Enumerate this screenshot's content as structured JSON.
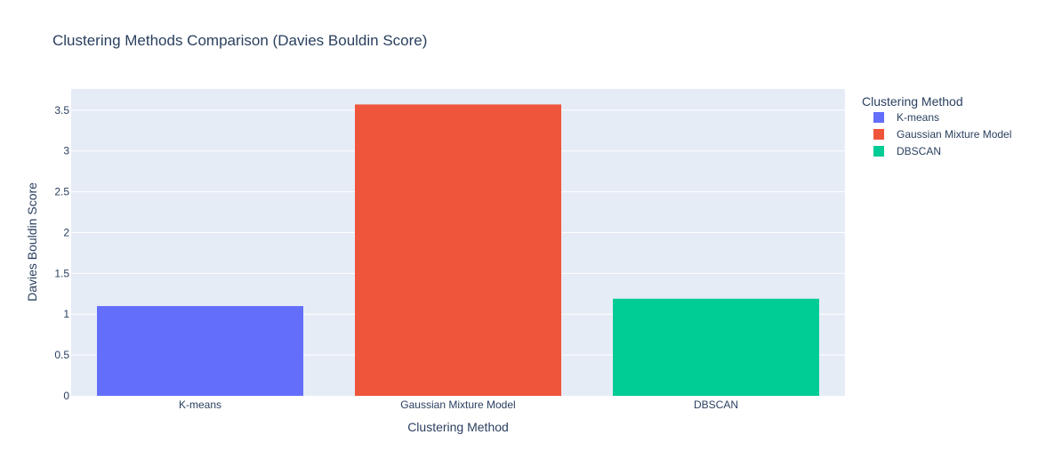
{
  "chart_data": {
    "type": "bar",
    "title": "Clustering Methods Comparison (Davies Bouldin Score)",
    "xlabel": "Clustering Method",
    "ylabel": "Davies Bouldin Score",
    "categories": [
      "K-means",
      "Gaussian Mixture Model",
      "DBSCAN"
    ],
    "values": [
      1.1,
      3.57,
      1.19
    ],
    "colors": [
      "#636efa",
      "#ef553b",
      "#00cc96"
    ],
    "ylim": [
      0,
      3.76
    ],
    "yticks": [
      0,
      0.5,
      1,
      1.5,
      2,
      2.5,
      3,
      3.5
    ],
    "ytick_labels": [
      "0",
      "0.5",
      "1",
      "1.5",
      "2",
      "2.5",
      "3",
      "3.5"
    ],
    "grid": true,
    "plot_background": "#e5ecf6",
    "legend": {
      "title": "Clustering Method",
      "placement": "right",
      "entries": [
        "K-means",
        "Gaussian Mixture Model",
        "DBSCAN"
      ]
    }
  }
}
